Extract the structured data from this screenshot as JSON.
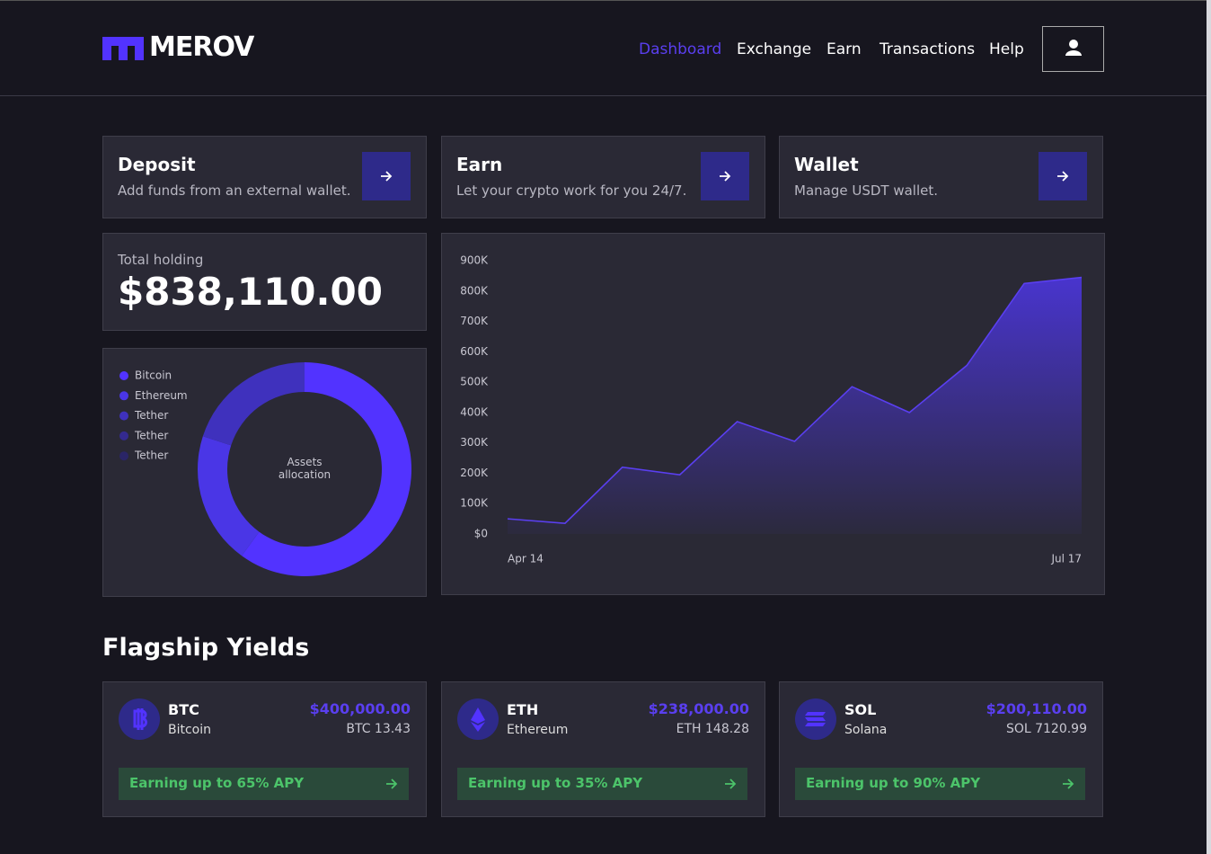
{
  "header": {
    "logo": "MEROV",
    "nav": [
      "Dashboard",
      "Exchange",
      "Earn",
      "Transactions",
      "Help"
    ],
    "active_index": 0
  },
  "actions": [
    {
      "title": "Deposit",
      "subtitle": "Add funds from an external wallet."
    },
    {
      "title": "Earn",
      "subtitle": "Let your crypto work for you 24/7."
    },
    {
      "title": "Wallet",
      "subtitle": "Manage USDT wallet."
    }
  ],
  "total": {
    "label": "Total holding",
    "value": "$838,110.00"
  },
  "allocation": {
    "type": "pie",
    "center_label": "Assets allocation",
    "categories": [
      "Bitcoin",
      "Ethereum",
      "Tether",
      "Tether",
      "Tether"
    ],
    "values": [
      60,
      20,
      20,
      0,
      0
    ],
    "colors": [
      "#5233ff",
      "#4a36e6",
      "#3f31bd",
      "#342a8f",
      "#2a2566"
    ]
  },
  "chart_data": {
    "type": "area",
    "categories": [
      "Apr 14",
      null,
      null,
      null,
      null,
      null,
      null,
      null,
      null,
      null,
      "Jul 17"
    ],
    "series": [
      {
        "name": null,
        "color": "#5a3ff0",
        "values": [
          50000,
          35000,
          220000,
          195000,
          370000,
          305000,
          485000,
          400000,
          555000,
          825000,
          845000
        ]
      }
    ],
    "ylim": [
      0,
      900000
    ],
    "yticks": [
      {
        "value": 0,
        "label": "$0"
      },
      {
        "value": 100000,
        "label": "100K"
      },
      {
        "value": 200000,
        "label": "200K"
      },
      {
        "value": 300000,
        "label": "300K"
      },
      {
        "value": 400000,
        "label": "400K"
      },
      {
        "value": 500000,
        "label": "500K"
      },
      {
        "value": 600000,
        "label": "600K"
      },
      {
        "value": 700000,
        "label": "700K"
      },
      {
        "value": 800000,
        "label": "800K"
      },
      {
        "value": 900000,
        "label": "900K"
      }
    ]
  },
  "yields": {
    "title": "Flagship Yields",
    "items": [
      {
        "symbol": "BTC",
        "name": "Bitcoin",
        "value": "$400,000.00",
        "amount": "BTC 13.43",
        "apy": "Earning up to 65% APY"
      },
      {
        "symbol": "ETH",
        "name": "Ethereum",
        "value": "$238,000.00",
        "amount": "ETH 148.28",
        "apy": "Earning up to 35% APY"
      },
      {
        "symbol": "SOL",
        "name": "Solana",
        "value": "$200,110.00",
        "amount": "SOL 7120.99",
        "apy": "Earning up to 90% APY"
      }
    ]
  }
}
